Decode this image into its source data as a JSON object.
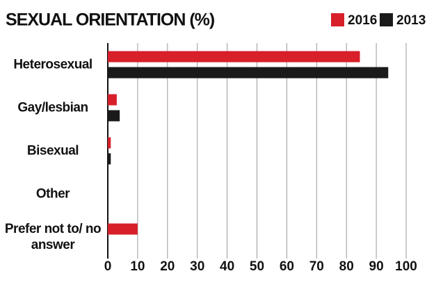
{
  "chart_data": {
    "type": "hbar",
    "title": "SEXUAL ORIENTATION (%)",
    "categories": [
      "Heterosexual",
      "Gay/lesbian",
      "Bisexual",
      "Other",
      "Prefer not to/ no answer"
    ],
    "series": [
      {
        "name": "2016",
        "color": "#d7202a",
        "values": [
          84.5,
          3,
          1,
          0,
          10
        ]
      },
      {
        "name": "2013",
        "color": "#1a1a1a",
        "values": [
          94,
          4,
          1,
          0,
          0
        ]
      }
    ],
    "xlim": [
      0,
      100
    ],
    "xticks": [
      0,
      10,
      20,
      30,
      40,
      50,
      60,
      70,
      80,
      90,
      100
    ],
    "grid": true,
    "legend": "top-right"
  }
}
